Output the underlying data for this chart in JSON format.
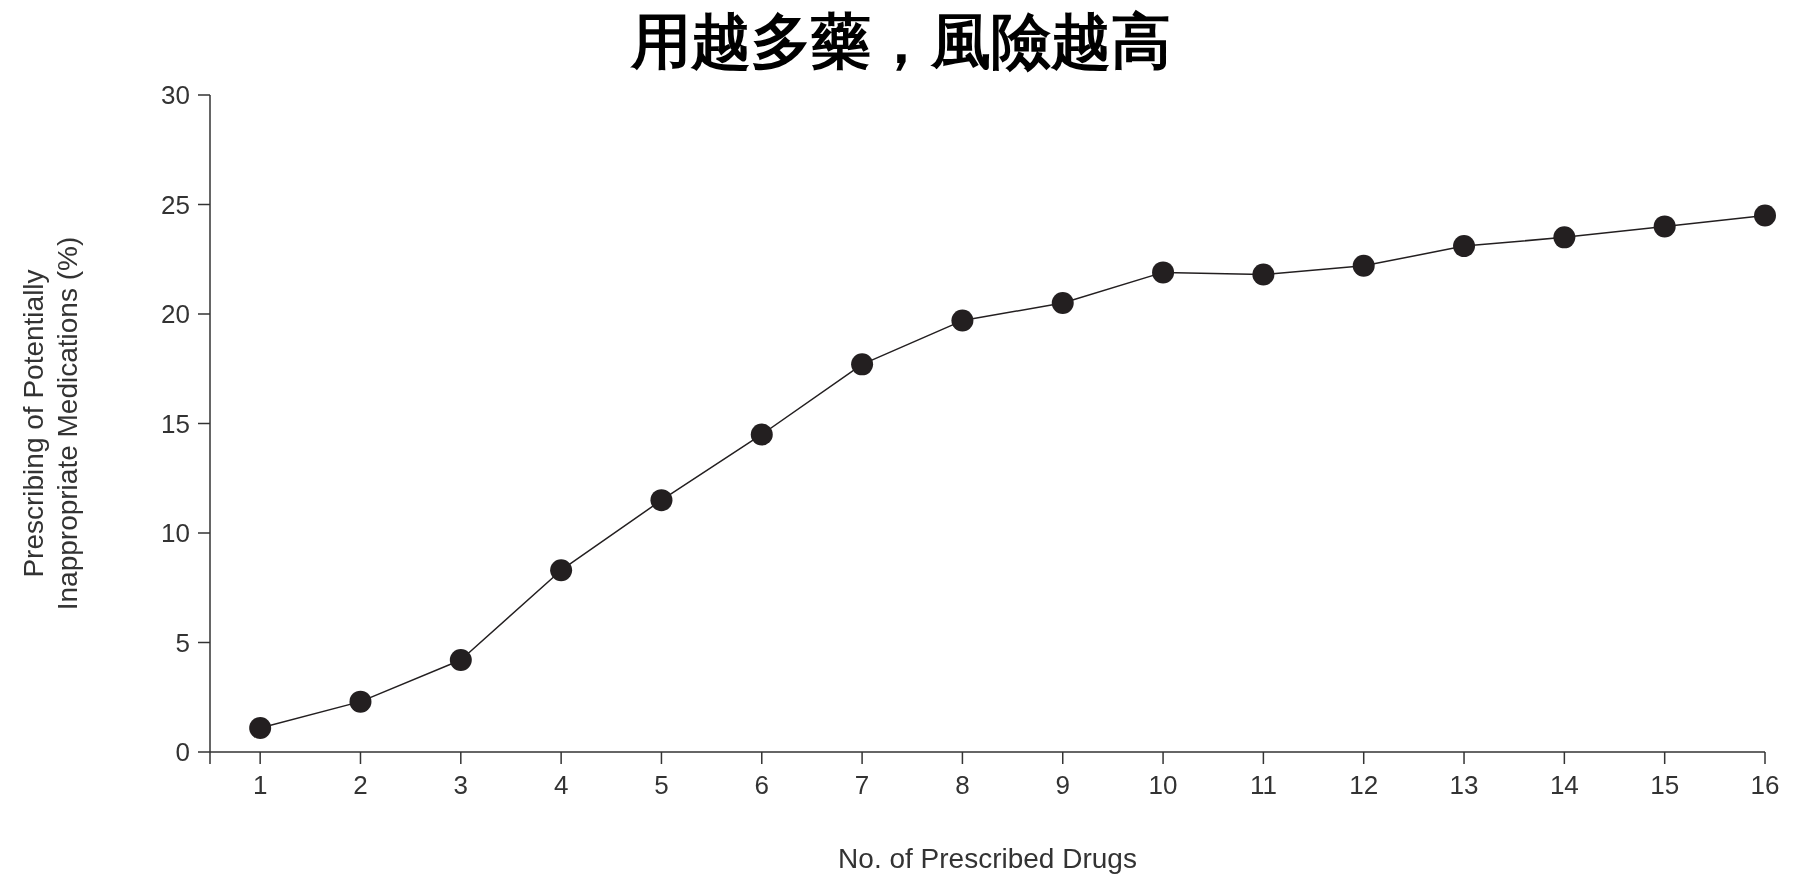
{
  "chart_data": {
    "type": "line",
    "title": "用越多藥，風險越高",
    "xlabel": "No. of Prescribed Drugs",
    "ylabel": "Prescribing of Potentially\nInappropriate Medications (%)",
    "x": [
      1,
      2,
      3,
      4,
      5,
      6,
      7,
      8,
      9,
      10,
      11,
      12,
      13,
      14,
      15,
      16
    ],
    "series": [
      {
        "color": "#231f20",
        "values": [
          1.1,
          2.3,
          4.2,
          8.3,
          11.5,
          14.5,
          17.7,
          19.7,
          20.5,
          21.9,
          21.8,
          22.2,
          23.1,
          23.5,
          24.0,
          24.5
        ]
      }
    ],
    "xlim": [
      0.5,
      16
    ],
    "ylim": [
      0,
      30
    ],
    "xticks": [
      {
        "value": 0.5,
        "label": null
      },
      1,
      2,
      3,
      4,
      5,
      6,
      7,
      8,
      9,
      10,
      11,
      12,
      13,
      14,
      15,
      16
    ],
    "yticks": [
      0,
      5,
      10,
      15,
      20,
      25,
      30
    ],
    "marker": "circle",
    "line_style": "solid"
  }
}
